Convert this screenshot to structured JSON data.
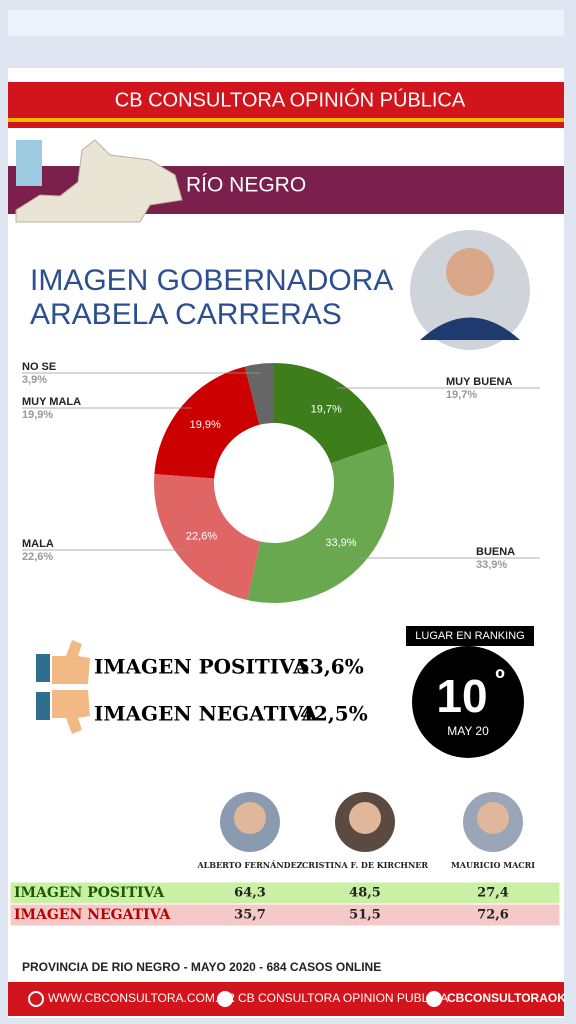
{
  "header": {
    "brand": "CB CONSULTORA OPINIÓN PÚBLICA",
    "region": "RÍO NEGRO"
  },
  "title": {
    "line1": "IMAGEN GOBERNADORA",
    "line2": "ARABELA CARRERAS"
  },
  "chart_data": {
    "type": "pie",
    "categories": [
      "MUY BUENA",
      "BUENA",
      "MALA",
      "MUY MALA",
      "NO SE"
    ],
    "values": [
      19.7,
      33.9,
      22.6,
      19.9,
      3.9
    ],
    "value_labels": [
      "19,7%",
      "33,9%",
      "22,6%",
      "19,9%",
      "3,9%"
    ],
    "colors": [
      "#3d7d1c",
      "#6aa84f",
      "#e06666",
      "#cc0000",
      "#666666"
    ],
    "donut": true
  },
  "summary": {
    "positive_label": "IMAGEN POSITIVA",
    "positive_value": "53,6%",
    "negative_label": "IMAGEN NEGATIVA",
    "negative_value": "42,5%"
  },
  "ranking": {
    "label": "LUGAR EN RANKING",
    "rank": "10",
    "suffix": "º",
    "date": "MAY 20"
  },
  "table": {
    "columns": [
      "ALBERTO FERNÁNDEZ",
      "CRISTINA F. DE KIRCHNER",
      "MAURICIO MACRI"
    ],
    "rows": [
      [
        "IMAGEN POSITIVA",
        "64,3",
        "48,5",
        "27,4"
      ],
      [
        "IMAGEN NEGATIVA",
        "35,7",
        "51,5",
        "72,6"
      ]
    ]
  },
  "footer": {
    "note": "PROVINCIA DE RIO NEGRO - MAYO 2020 -  684 CASOS ONLINE",
    "web": "WWW.CBCONSULTORA.COM.AR",
    "facebook": "CB CONSULTORA OPINION PUBLICA",
    "twitter": "CBCONSULTORAOK"
  }
}
